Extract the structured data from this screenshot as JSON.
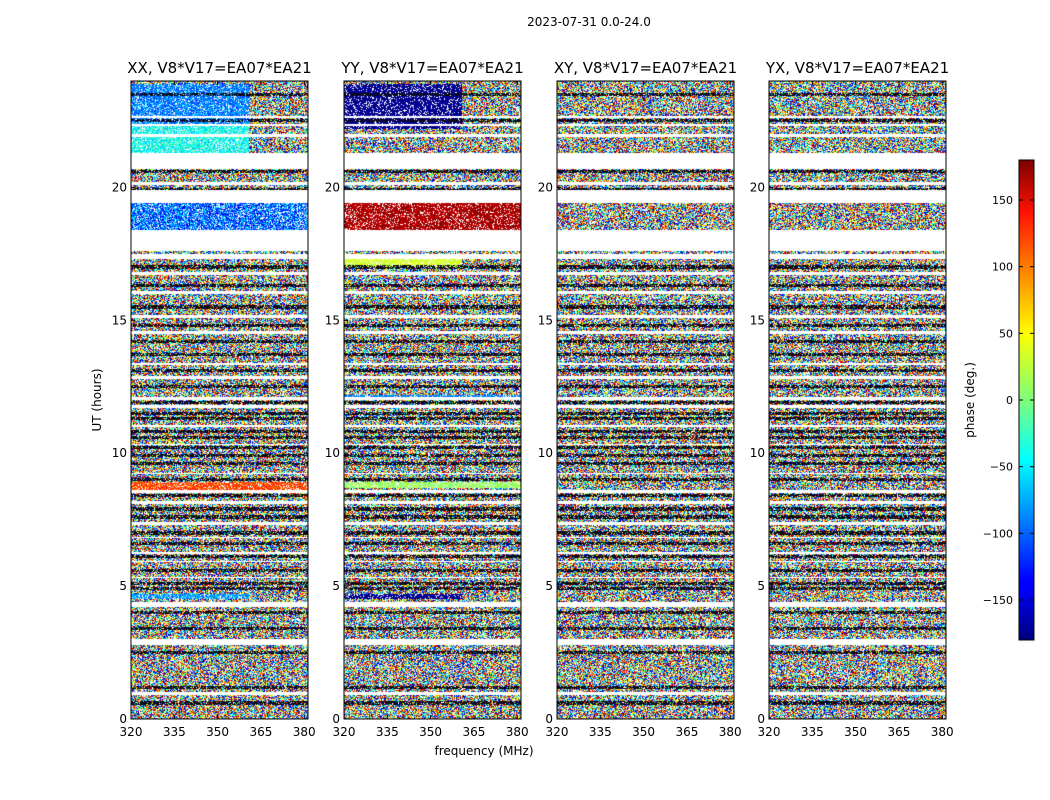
{
  "figure": {
    "suptitle": "2023-07-31 0.0-24.0",
    "xlabel": "frequency (MHz)",
    "ylabel": "UT (hours)"
  },
  "colorbar": {
    "label": "phase (deg.)",
    "colormap": "jet",
    "range": [
      -180,
      180
    ],
    "ticks": [
      -150,
      -100,
      -50,
      0,
      50,
      100,
      150
    ],
    "tick_labels": [
      "−150",
      "−100",
      "−50",
      "0",
      "50",
      "100",
      "150"
    ]
  },
  "chart_data": [
    {
      "type": "heatmap",
      "title": "XX, V8*V17=EA07*EA21",
      "polarization": "XX",
      "xlim": [
        320,
        381.3
      ],
      "ylim": [
        0,
        24
      ],
      "xticks": [
        320,
        335,
        350,
        365,
        380
      ],
      "yticks": [
        0,
        5,
        10,
        15,
        20
      ],
      "value": "phase (deg.)",
      "value_range": [
        -180,
        180
      ],
      "bands": [
        {
          "y0": 22.4,
          "y1": 23.9,
          "phase": -90,
          "spread": 60,
          "noisy_from_freq": 361
        },
        {
          "y0": 21.3,
          "y1": 22.3,
          "phase": -40,
          "spread": 70,
          "noisy_from_freq": 361
        },
        {
          "y0": 18.4,
          "y1": 19.4,
          "phase": -100,
          "spread": 110
        },
        {
          "y0": 8.6,
          "y1": 8.9,
          "phase": 110,
          "spread": 40
        },
        {
          "y0": 4.5,
          "y1": 4.7,
          "phase": -80,
          "spread": 50,
          "noisy_from_freq": 361
        }
      ]
    },
    {
      "type": "heatmap",
      "title": "YY, V8*V17=EA07*EA21",
      "polarization": "YY",
      "xlim": [
        320,
        381.3
      ],
      "ylim": [
        0,
        24
      ],
      "xticks": [
        320,
        335,
        350,
        365,
        380
      ],
      "yticks": [
        0,
        5,
        10,
        15,
        20
      ],
      "value": "phase (deg.)",
      "value_range": [
        -180,
        180
      ],
      "bands": [
        {
          "y0": 22.2,
          "y1": 23.9,
          "phase": -175,
          "spread": 25,
          "noisy_from_freq": 361
        },
        {
          "y0": 18.4,
          "y1": 19.4,
          "phase": 165,
          "spread": 40
        },
        {
          "y0": 17.0,
          "y1": 17.3,
          "phase": 30,
          "spread": 30,
          "noisy_from_freq": 361
        },
        {
          "y0": 12.0,
          "y1": 12.2,
          "phase": -90,
          "spread": 30
        },
        {
          "y0": 8.7,
          "y1": 8.9,
          "phase": 10,
          "spread": 30
        },
        {
          "y0": 4.5,
          "y1": 4.7,
          "phase": -175,
          "spread": 20,
          "noisy_from_freq": 361
        }
      ]
    },
    {
      "type": "heatmap",
      "title": "XY, V8*V17=EA07*EA21",
      "polarization": "XY",
      "xlim": [
        320,
        381.3
      ],
      "ylim": [
        0,
        24
      ],
      "xticks": [
        320,
        335,
        350,
        365,
        380
      ],
      "yticks": [
        0,
        5,
        10,
        15,
        20
      ],
      "value": "phase (deg.)",
      "value_range": [
        -180,
        180
      ],
      "bands": []
    },
    {
      "type": "heatmap",
      "title": "YX, V8*V17=EA07*EA21",
      "polarization": "YX",
      "xlim": [
        320,
        381.3
      ],
      "ylim": [
        0,
        24
      ],
      "xticks": [
        320,
        335,
        350,
        365,
        380
      ],
      "yticks": [
        0,
        5,
        10,
        15,
        20
      ],
      "value": "phase (deg.)",
      "value_range": [
        -180,
        180
      ],
      "bands": []
    }
  ],
  "shared": {
    "gaps_ut_hours": [
      [
        0.9,
        1.0
      ],
      [
        2.8,
        3.0
      ],
      [
        4.2,
        4.4
      ],
      [
        5.3,
        5.35
      ],
      [
        5.9,
        5.95
      ],
      [
        6.2,
        6.3
      ],
      [
        6.8,
        6.85
      ],
      [
        7.3,
        7.4
      ],
      [
        8.1,
        8.2
      ],
      [
        8.5,
        8.6
      ],
      [
        9.2,
        9.25
      ],
      [
        10.3,
        10.35
      ],
      [
        11.0,
        11.05
      ],
      [
        11.7,
        11.8
      ],
      [
        12.0,
        12.1
      ],
      [
        12.8,
        12.9
      ],
      [
        13.3,
        13.4
      ],
      [
        14.5,
        14.6
      ],
      [
        15.1,
        15.2
      ],
      [
        16.0,
        16.1
      ],
      [
        16.7,
        16.8
      ],
      [
        17.3,
        17.5
      ],
      [
        17.6,
        18.4
      ],
      [
        19.4,
        19.9
      ],
      [
        20.1,
        20.2
      ],
      [
        20.7,
        20.8
      ],
      [
        20.8,
        21.3
      ],
      [
        21.9,
        22.0
      ],
      [
        22.3,
        22.4
      ],
      [
        22.6,
        22.7
      ]
    ],
    "dark_rows_ut_hours": [
      0.6,
      1.2,
      2.5,
      3.4,
      4.0,
      4.9,
      5.1,
      5.6,
      6.1,
      6.6,
      7.0,
      7.6,
      7.9,
      8.4,
      9.0,
      9.6,
      9.9,
      10.2,
      10.6,
      10.8,
      11.3,
      11.5,
      11.9,
      12.5,
      13.1,
      13.7,
      14.2,
      14.8,
      15.5,
      16.3,
      17.0,
      18.3,
      19.9,
      20.6,
      22.5,
      23.5
    ]
  }
}
